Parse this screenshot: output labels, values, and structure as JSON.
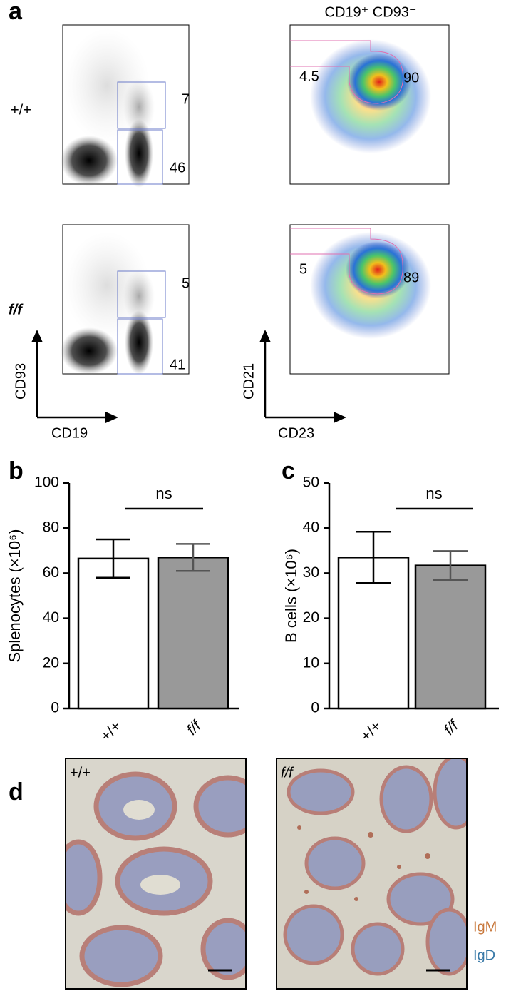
{
  "panel_labels": [
    "a",
    "b",
    "c",
    "d"
  ],
  "flow": {
    "header": "CD19⁺  CD93⁻",
    "rows": [
      {
        "genotype": "+/+",
        "gates_cd19": [
          "7",
          "46"
        ],
        "gates_cd21": [
          "4.5",
          "90"
        ]
      },
      {
        "genotype": "f/f",
        "gates_cd19": [
          "5",
          "41"
        ],
        "gates_cd21": [
          "5",
          "89"
        ]
      }
    ],
    "axes_left": {
      "y": "CD93",
      "x": "CD19"
    },
    "axes_right": {
      "y": "CD21",
      "x": "CD23"
    }
  },
  "chart_data": [
    {
      "type": "bar",
      "ylabel": "Splenocytes (×10⁶)",
      "categories": [
        "+/+",
        "f/f"
      ],
      "values": [
        66.5,
        67
      ],
      "errors": [
        8.5,
        6
      ],
      "colors": [
        "#ffffff",
        "#999999"
      ],
      "error_colors": [
        "#000000",
        "#555555"
      ],
      "ylim": [
        0,
        100
      ],
      "yticks": [
        0,
        20,
        40,
        60,
        80,
        100
      ],
      "significance": "ns"
    },
    {
      "type": "bar",
      "ylabel": "B cells (×10⁶)",
      "categories": [
        "+/+",
        "f/f"
      ],
      "values": [
        33.5,
        31.7
      ],
      "errors": [
        5.7,
        3.2
      ],
      "colors": [
        "#ffffff",
        "#999999"
      ],
      "error_colors": [
        "#000000",
        "#555555"
      ],
      "ylim": [
        0,
        50
      ],
      "yticks": [
        0,
        10,
        20,
        30,
        40,
        50
      ],
      "significance": "ns"
    }
  ],
  "histology": {
    "panels": [
      "+/+",
      "f/f"
    ],
    "stains": [
      "IgM",
      "IgD"
    ]
  }
}
